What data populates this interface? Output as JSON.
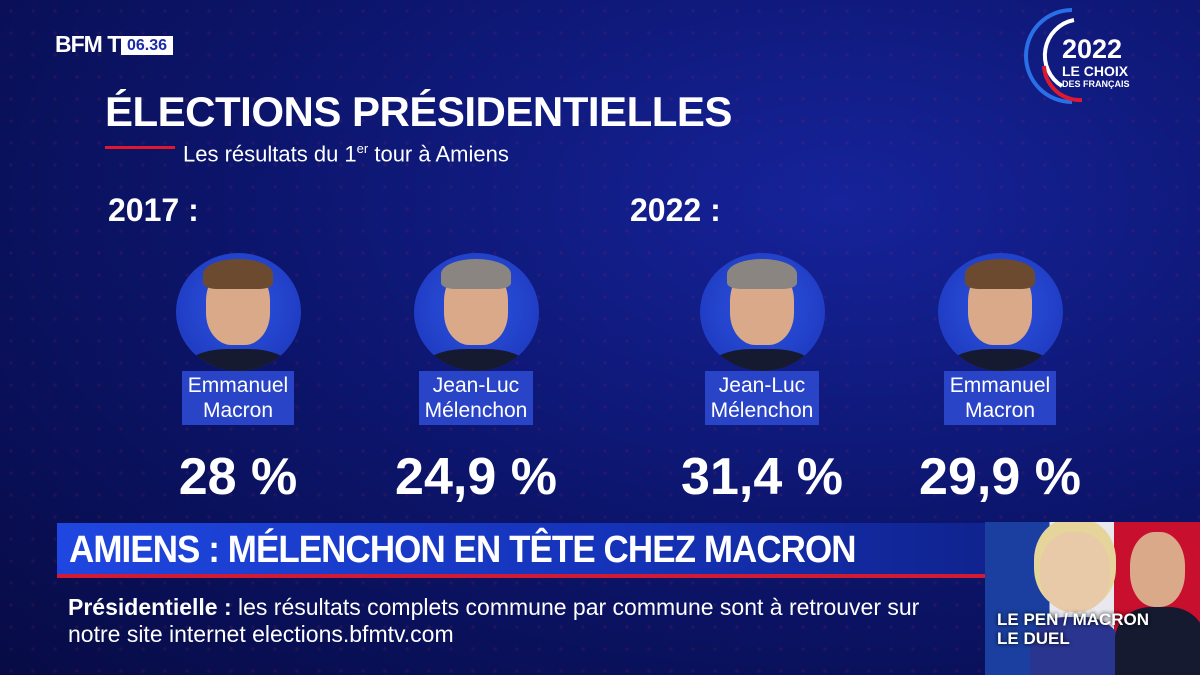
{
  "channel": {
    "logo": "BFM TV.",
    "time": "06.36"
  },
  "badge": {
    "year": "2022",
    "line1": "LE CHOIX",
    "line2": "DES FRANÇAIS"
  },
  "header": {
    "title": "ÉLECTIONS PRÉSIDENTIELLES",
    "subtitle_pre": "Les résultats du 1",
    "subtitle_sup": "er",
    "subtitle_post": " tour à Amiens"
  },
  "groups": [
    {
      "year": "2017 :",
      "candidates": [
        {
          "name1": "Emmanuel",
          "name2": "Macron",
          "pct": "28 %"
        },
        {
          "name1": "Jean-Luc",
          "name2": "Mélenchon",
          "pct": "24,9 %"
        }
      ]
    },
    {
      "year": "2022 :",
      "candidates": [
        {
          "name1": "Jean-Luc",
          "name2": "Mélenchon",
          "pct": "31,4 %"
        },
        {
          "name1": "Emmanuel",
          "name2": "Macron",
          "pct": "29,9 %"
        }
      ]
    }
  ],
  "banner": {
    "headline": "AMIENS : MÉLENCHON EN TÊTE CHEZ MACRON"
  },
  "ticker": {
    "label": "Présidentielle :",
    "text": " les résultats complets commune par commune sont à retrouver sur notre site internet elections.bfmtv.com"
  },
  "thumbnail": {
    "line1": "LE PEN / MACRON",
    "line2": "LE DUEL"
  }
}
